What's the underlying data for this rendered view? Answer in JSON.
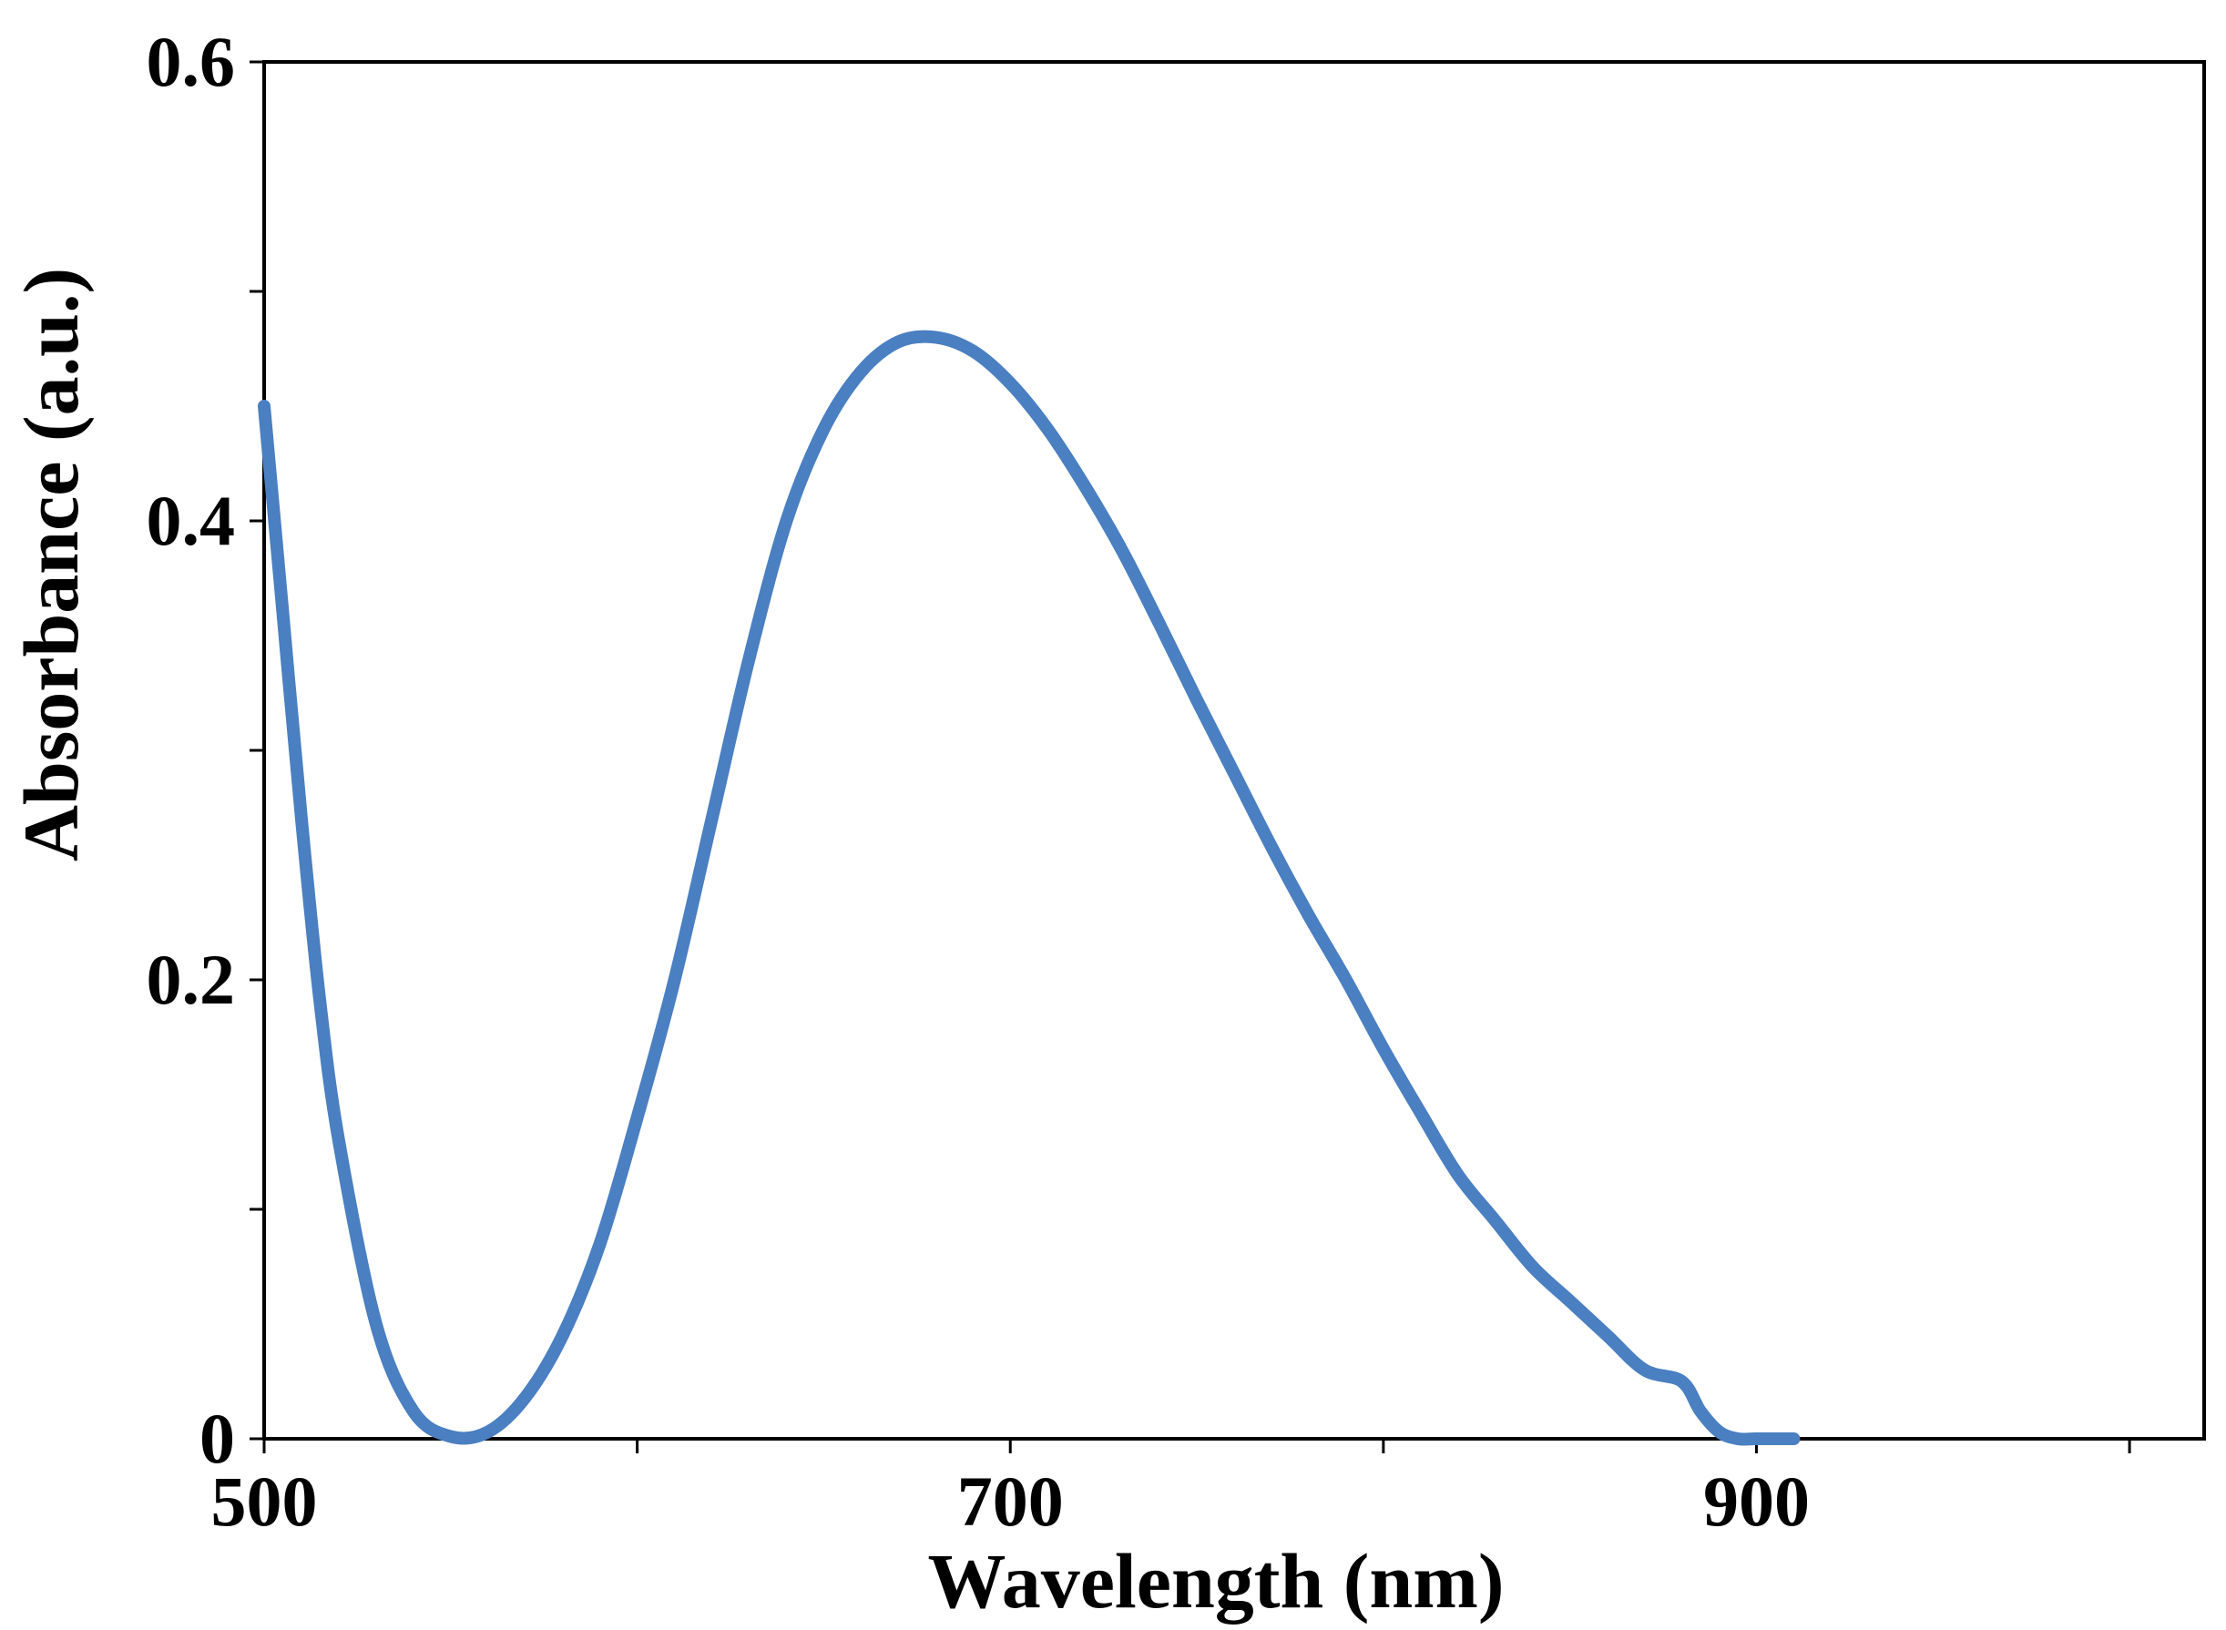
{
  "chart_data": {
    "type": "line",
    "title": "",
    "xlabel": "Wavelength (nm)",
    "ylabel": "Absorbance (a.u.)",
    "xlim": [
      500,
      1020
    ],
    "ylim": [
      0,
      0.6
    ],
    "x_ticks": [
      500,
      600,
      700,
      800,
      900,
      1000
    ],
    "x_tick_labels": [
      "500",
      "",
      "700",
      "",
      "900",
      ""
    ],
    "y_ticks": [
      0,
      0.1,
      0.2,
      0.3,
      0.4,
      0.5,
      0.6
    ],
    "y_tick_labels": [
      "0",
      "",
      "0.2",
      "",
      "0.4",
      "",
      "0.6"
    ],
    "grid": false,
    "legend": null,
    "color": "#4a7fc1",
    "series": [
      {
        "name": "Absorbance",
        "x": [
          500,
          505,
          510,
          515,
          520,
          530,
          540,
          550,
          560,
          570,
          580,
          590,
          600,
          610,
          620,
          630,
          640,
          650,
          660,
          670,
          680,
          690,
          700,
          710,
          720,
          730,
          740,
          750,
          760,
          770,
          780,
          790,
          800,
          810,
          820,
          830,
          840,
          850,
          860,
          870,
          880,
          885,
          890,
          895,
          900,
          910
        ],
        "y": [
          0.45,
          0.36,
          0.27,
          0.19,
          0.13,
          0.05,
          0.012,
          0.001,
          0.003,
          0.018,
          0.045,
          0.085,
          0.14,
          0.2,
          0.27,
          0.34,
          0.4,
          0.44,
          0.465,
          0.478,
          0.48,
          0.474,
          0.46,
          0.44,
          0.415,
          0.387,
          0.355,
          0.322,
          0.29,
          0.258,
          0.228,
          0.2,
          0.17,
          0.142,
          0.115,
          0.095,
          0.075,
          0.06,
          0.045,
          0.03,
          0.025,
          0.012,
          0.003,
          0.0,
          0.0,
          0.0
        ]
      }
    ]
  }
}
